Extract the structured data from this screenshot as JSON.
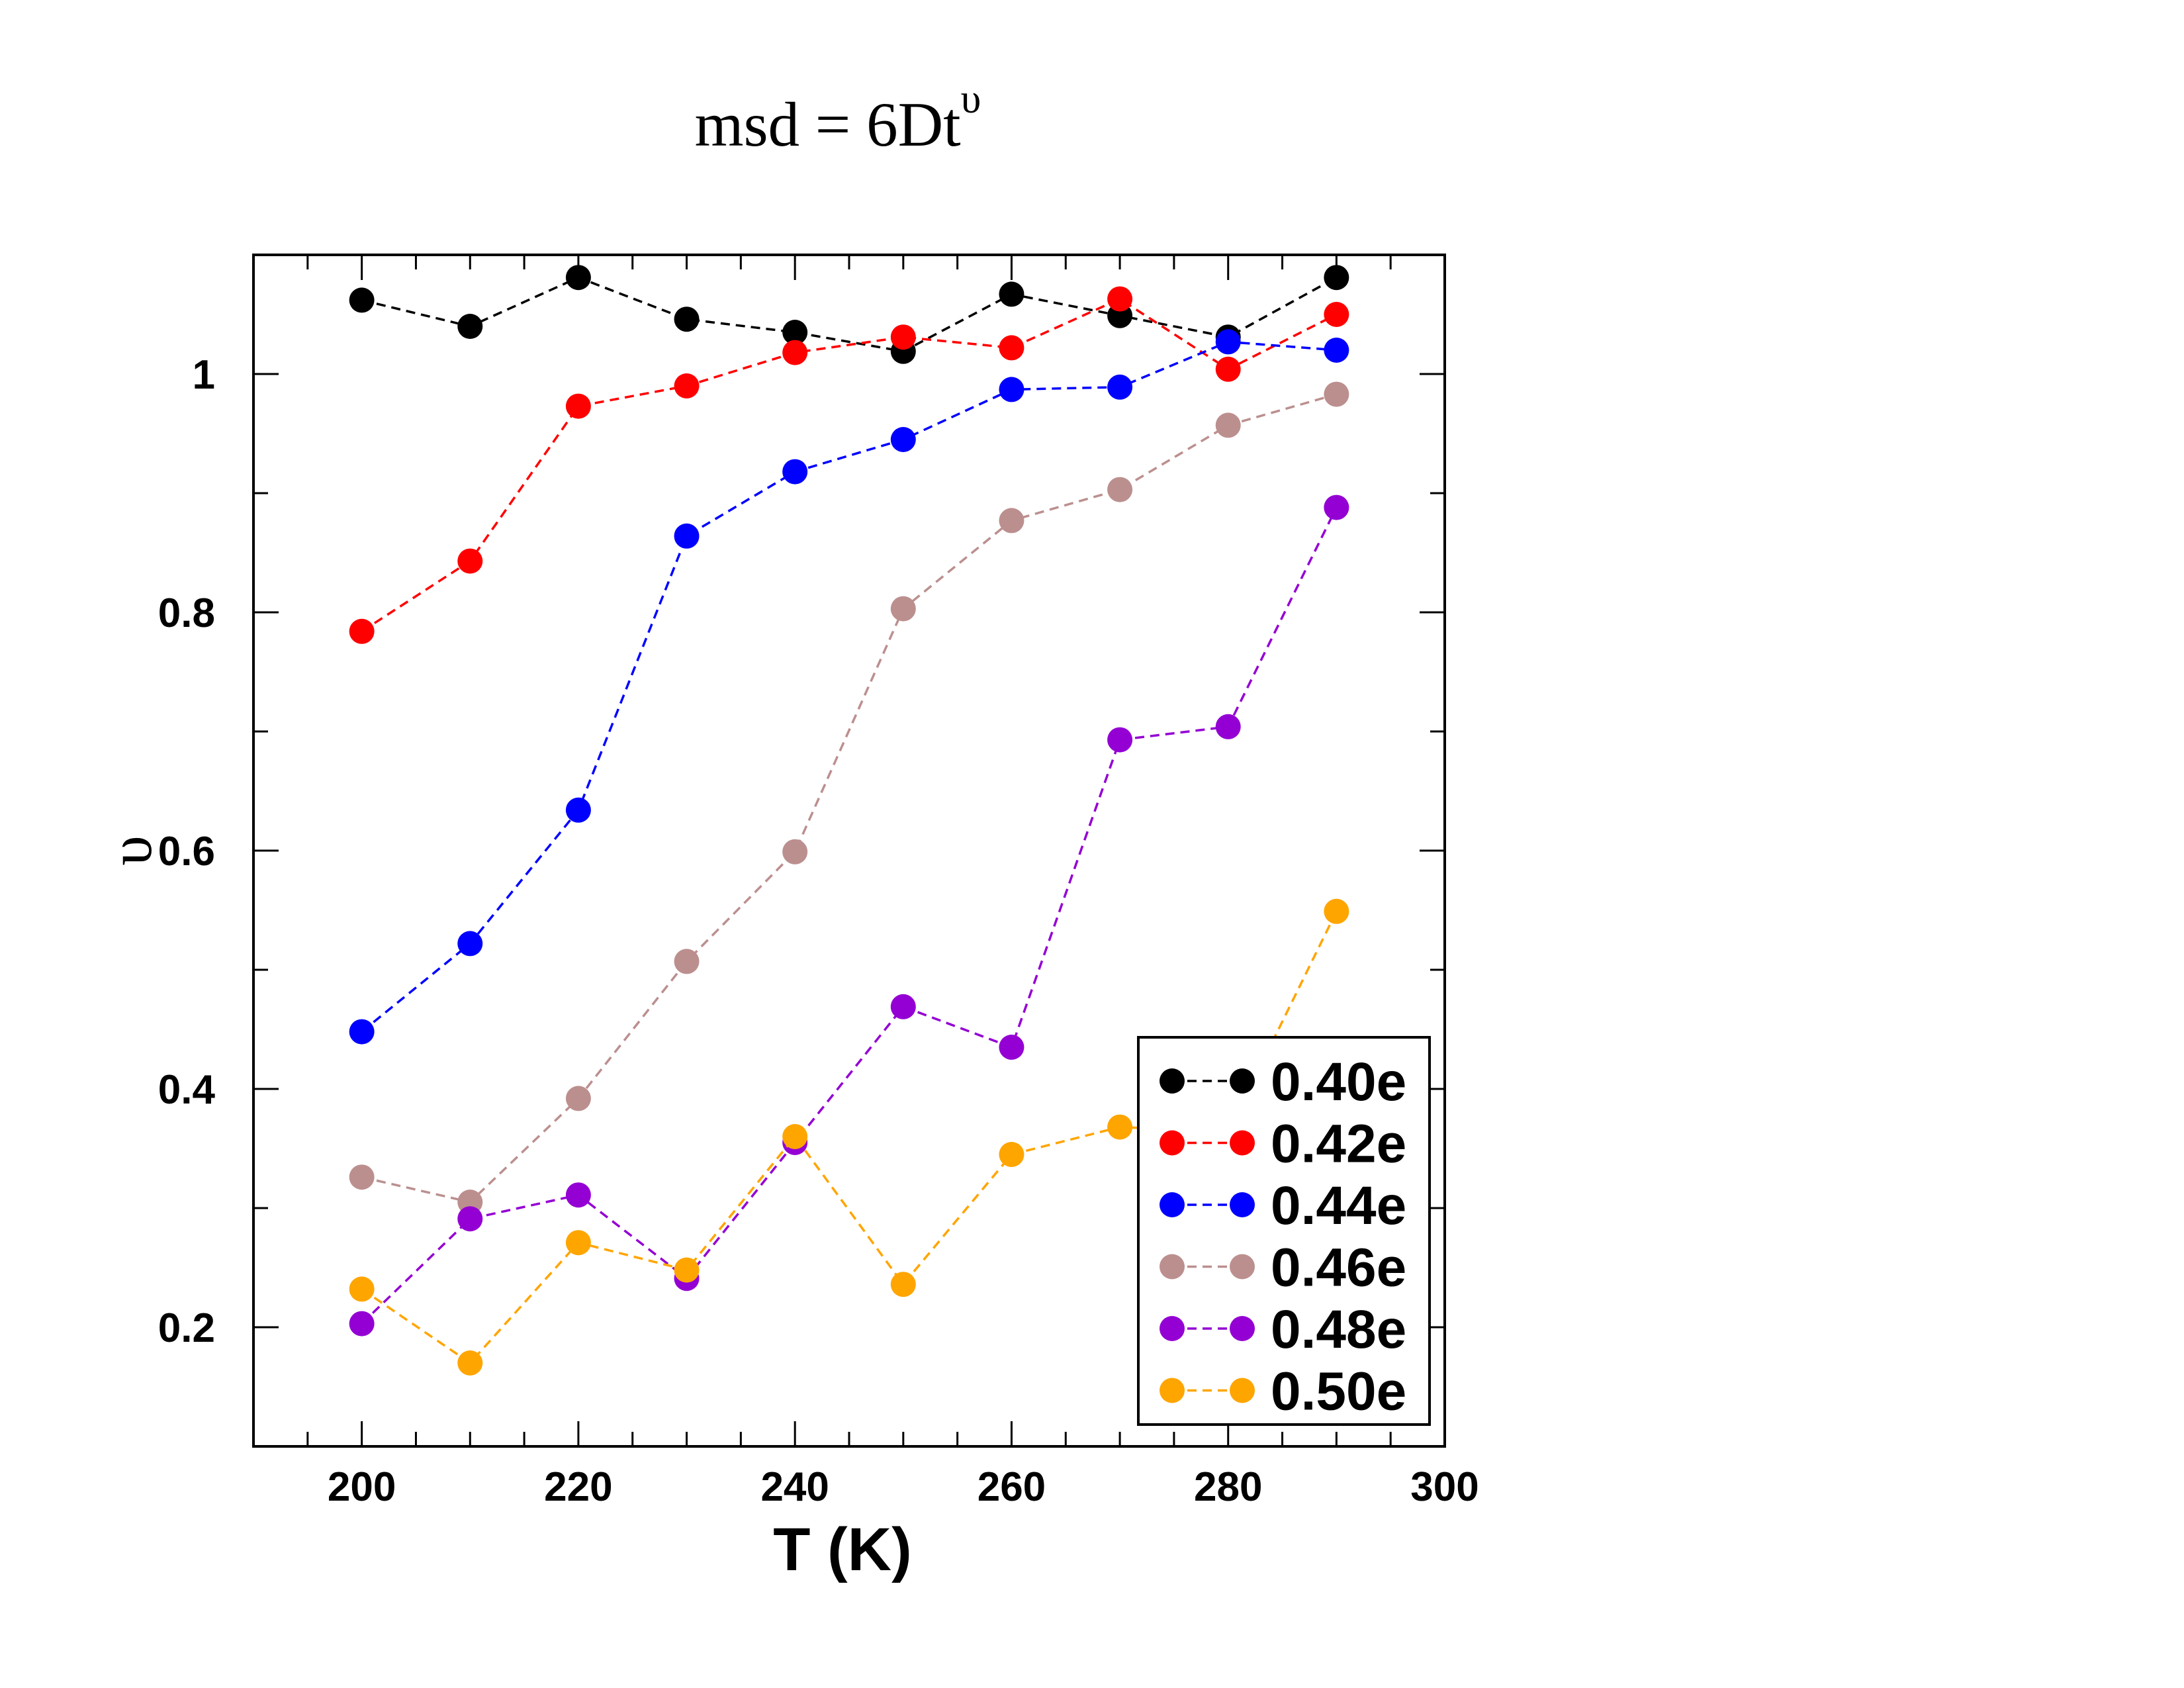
{
  "chart_data": {
    "type": "line",
    "title": {
      "main": "msd = 6Dt",
      "superscript": "υ"
    },
    "xlabel": "T (K)",
    "ylabel": "υ",
    "xlim": [
      190,
      300
    ],
    "ylim": [
      0.1,
      1.1
    ],
    "x_ticks": [
      200,
      220,
      240,
      260,
      280,
      300
    ],
    "x_tick_labels": [
      "200",
      "220",
      "240",
      "260",
      "280",
      "300"
    ],
    "y_ticks": [
      0.2,
      0.4,
      0.6,
      0.8,
      1.0
    ],
    "y_tick_labels": [
      "0.2",
      "0.4",
      "0.6",
      "0.8",
      "1"
    ],
    "grid": false,
    "legend_position": "bottom-right",
    "x": [
      200,
      210,
      220,
      230,
      240,
      250,
      260,
      270,
      280,
      290
    ],
    "series": [
      {
        "name": "0.40e",
        "color": "#000000",
        "values": [
          1.062,
          1.04,
          1.081,
          1.046,
          1.035,
          1.019,
          1.067,
          1.049,
          1.031,
          1.081
        ]
      },
      {
        "name": "0.42e",
        "color": "#ff0000",
        "values": [
          0.784,
          0.843,
          0.973,
          0.99,
          1.018,
          1.031,
          1.022,
          1.063,
          1.004,
          1.05
        ]
      },
      {
        "name": "0.44e",
        "color": "#0000ff",
        "values": [
          0.448,
          0.522,
          0.634,
          0.864,
          0.918,
          0.945,
          0.987,
          0.989,
          1.027,
          1.02
        ]
      },
      {
        "name": "0.46e",
        "color": "#bc8f8f",
        "values": [
          0.326,
          0.305,
          0.392,
          0.507,
          0.599,
          0.803,
          0.877,
          0.903,
          0.957,
          0.983
        ]
      },
      {
        "name": "0.48e",
        "color": "#9400d3",
        "values": [
          0.203,
          0.291,
          0.311,
          0.241,
          0.355,
          0.469,
          0.435,
          0.693,
          0.704,
          0.888
        ]
      },
      {
        "name": "0.50e",
        "color": "#ffa500",
        "values": [
          0.232,
          0.17,
          0.271,
          0.248,
          0.36,
          0.236,
          0.345,
          0.368,
          0.364,
          0.549
        ]
      }
    ]
  }
}
